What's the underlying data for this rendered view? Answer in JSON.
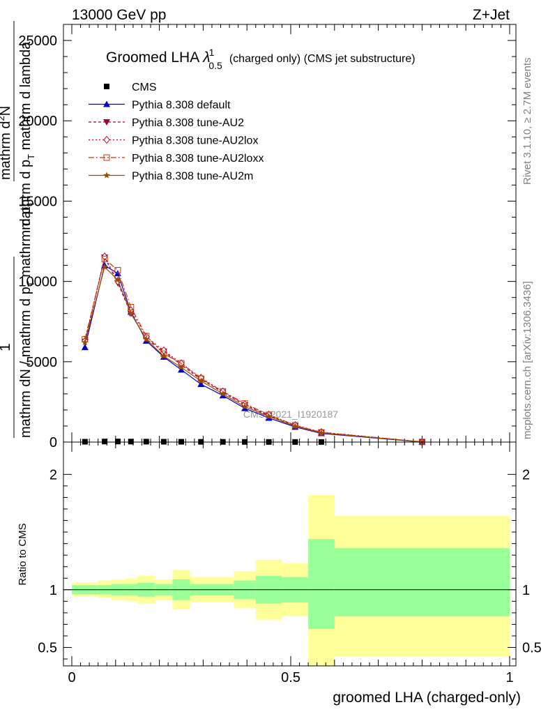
{
  "header": {
    "beam": "13000 GeV pp",
    "process": "Z+Jet",
    "plot_title_main": "Groomed LHA",
    "plot_title_lambda": "λ",
    "plot_title_sup": "1",
    "plot_title_sub": "0.5",
    "plot_title_tail": "(charged only) (CMS jet substructure)",
    "watermark": "CMS_2021_I1920187"
  },
  "side": {
    "rivet": "Rivet 3.1.10, ≥ 2.7M events",
    "mcplots": "mcplots.cern.ch [arXiv:1306.3436]"
  },
  "ylabel_main": {
    "one": "1",
    "frac1": "mathrm d",
    "frac2": "N",
    "lower": "mathrm dN / mathrm d p",
    "lower_sub": "T",
    "lower2": " mathrm d p",
    "lower2_sub": "T",
    "upper": "mathrm d",
    "upper_sup": "2",
    "upper2": "N",
    "denom": "mathrm d p",
    "denom_sub": "T",
    "denom2": " mathrm d lambda"
  },
  "ratio_ylabel": "Ratio to CMS",
  "xlabel": "groomed LHA (charged-only)",
  "colors": {
    "band_outer": "#ffff99",
    "band_inner": "#99ff99",
    "default": "#0000cc",
    "au2": "#990033",
    "au2lox": "#cc0033",
    "au2loxx": "#cc3300",
    "au2m": "#994c00"
  },
  "chart_data": [
    {
      "type": "line",
      "title": "Groomed LHA λ^1_0.5 (charged only) (CMS jet substructure)",
      "xlabel": "groomed LHA (charged-only)",
      "ylabel": "1/(mathrm dN / mathrm d p_T mathrm d p_T) mathrm d^2N/(mathrm d p_T mathrm d lambda)",
      "xlim": [
        -0.02,
        1.02
      ],
      "ylim": [
        0,
        26000
      ],
      "y_ticks": [
        "0",
        "5000",
        "10000",
        "15000",
        "20000",
        "25000"
      ],
      "x": [
        0.03,
        0.075,
        0.105,
        0.135,
        0.17,
        0.21,
        0.25,
        0.295,
        0.345,
        0.395,
        0.45,
        0.51,
        0.57,
        0.8
      ],
      "series": [
        {
          "name": "CMS",
          "marker": "square",
          "values": [
            20,
            35,
            35,
            30,
            25,
            20,
            18,
            15,
            12,
            10,
            8,
            6,
            5,
            3
          ]
        },
        {
          "name": "Pythia 8.308 default",
          "marker": "triangle-up",
          "values": [
            5900,
            11000,
            10500,
            8100,
            6300,
            5300,
            4500,
            3600,
            2900,
            2100,
            1500,
            940,
            540,
            0
          ]
        },
        {
          "name": "Pythia 8.308 tune-AU2",
          "marker": "triangle-down",
          "values": [
            6250,
            11500,
            9900,
            8000,
            6400,
            5650,
            4800,
            3900,
            3100,
            2300,
            1650,
            1000,
            600,
            10
          ]
        },
        {
          "name": "Pythia 8.308 tune-AU2lox",
          "marker": "diamond",
          "values": [
            6300,
            11550,
            10000,
            8200,
            6550,
            5700,
            4900,
            4000,
            3150,
            2350,
            1700,
            1050,
            620,
            10
          ]
        },
        {
          "name": "Pythia 8.308 tune-AU2loxx",
          "marker": "open-square",
          "values": [
            6400,
            11400,
            10700,
            8400,
            6600,
            5500,
            4900,
            3950,
            3150,
            2400,
            1700,
            1050,
            600,
            10
          ]
        },
        {
          "name": "Pythia 8.308 tune-AU2m",
          "marker": "star",
          "values": [
            6200,
            10900,
            10100,
            8000,
            6400,
            5350,
            4650,
            3800,
            3000,
            2200,
            1600,
            980,
            570,
            5
          ]
        }
      ]
    },
    {
      "type": "area",
      "ylabel": "Ratio to CMS",
      "xlabel": "groomed LHA (charged-only)",
      "xlim": [
        -0.02,
        1.02
      ],
      "ylim": [
        0.34,
        2.28
      ],
      "x_ticks": [
        "0",
        "0.5",
        "1"
      ],
      "y_ticks": [
        "0.5",
        "1",
        "2"
      ],
      "bins": [
        {
          "x0": 0.0,
          "x1": 0.06,
          "outer_low": 0.94,
          "outer_high": 1.06,
          "inner_low": 0.96,
          "inner_high": 1.04
        },
        {
          "x0": 0.06,
          "x1": 0.09,
          "outer_low": 0.93,
          "outer_high": 1.08,
          "inner_low": 0.96,
          "inner_high": 1.04
        },
        {
          "x0": 0.09,
          "x1": 0.12,
          "outer_low": 0.91,
          "outer_high": 1.09,
          "inner_low": 0.95,
          "inner_high": 1.05
        },
        {
          "x0": 0.12,
          "x1": 0.15,
          "outer_low": 0.9,
          "outer_high": 1.1,
          "inner_low": 0.95,
          "inner_high": 1.05
        },
        {
          "x0": 0.15,
          "x1": 0.19,
          "outer_low": 0.88,
          "outer_high": 1.12,
          "inner_low": 0.94,
          "inner_high": 1.06
        },
        {
          "x0": 0.19,
          "x1": 0.23,
          "outer_low": 0.91,
          "outer_high": 1.09,
          "inner_low": 0.95,
          "inner_high": 1.05
        },
        {
          "x0": 0.23,
          "x1": 0.27,
          "outer_low": 0.83,
          "outer_high": 1.17,
          "inner_low": 0.91,
          "inner_high": 1.09
        },
        {
          "x0": 0.27,
          "x1": 0.32,
          "outer_low": 0.89,
          "outer_high": 1.11,
          "inner_low": 0.95,
          "inner_high": 1.05
        },
        {
          "x0": 0.32,
          "x1": 0.37,
          "outer_low": 0.89,
          "outer_high": 1.11,
          "inner_low": 0.95,
          "inner_high": 1.05
        },
        {
          "x0": 0.37,
          "x1": 0.42,
          "outer_low": 0.84,
          "outer_high": 1.16,
          "inner_low": 0.92,
          "inner_high": 1.08
        },
        {
          "x0": 0.42,
          "x1": 0.48,
          "outer_low": 0.74,
          "outer_high": 1.26,
          "inner_low": 0.88,
          "inner_high": 1.12
        },
        {
          "x0": 0.48,
          "x1": 0.54,
          "outer_low": 0.77,
          "outer_high": 1.23,
          "inner_low": 0.89,
          "inner_high": 1.11
        },
        {
          "x0": 0.54,
          "x1": 0.6,
          "outer_low": 0.34,
          "outer_high": 1.82,
          "inner_low": 0.66,
          "inner_high": 1.44
        },
        {
          "x0": 0.6,
          "x1": 1.0,
          "outer_low": 0.42,
          "outer_high": 1.64,
          "inner_low": 0.77,
          "inner_high": 1.36
        }
      ]
    }
  ]
}
